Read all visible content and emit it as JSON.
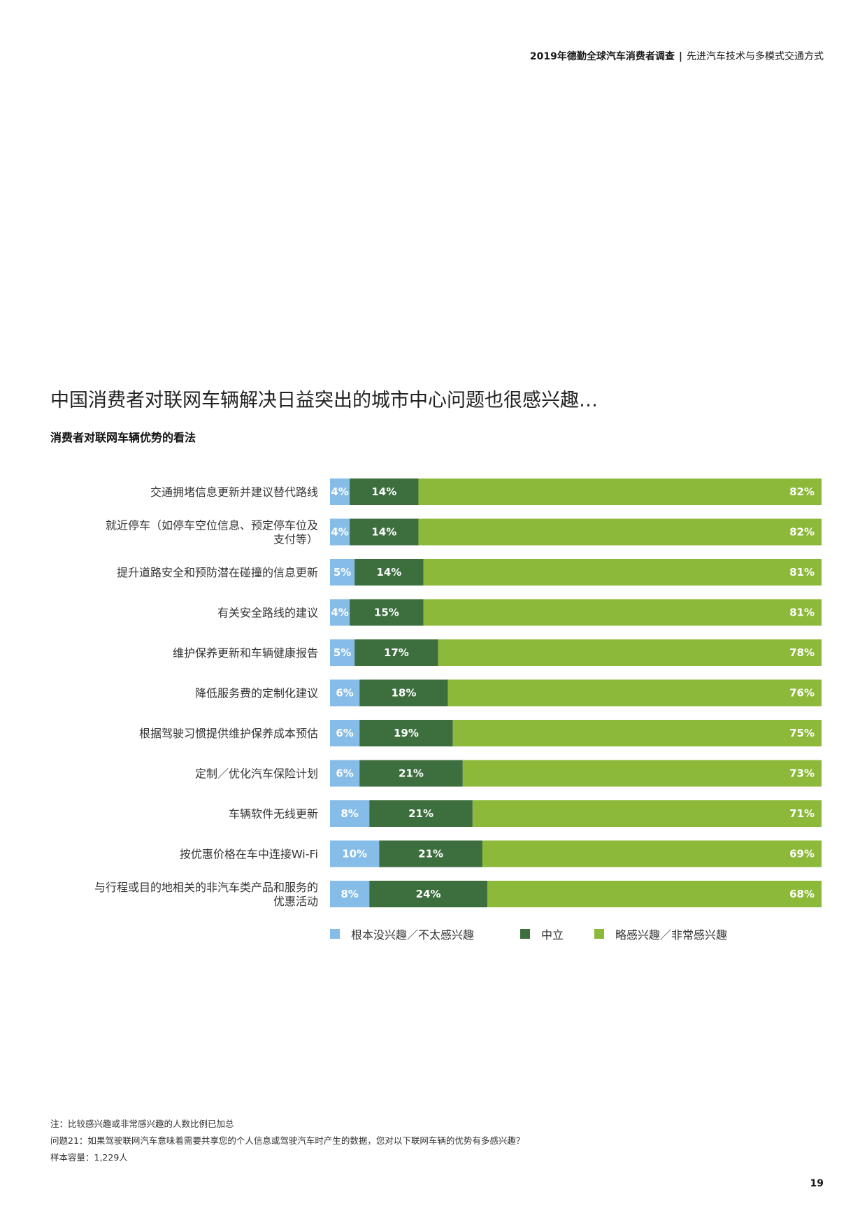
{
  "header": {
    "title": "2019年德勤全球汽车消费者调查",
    "separator": "|",
    "subtitle": "先进汽车技术与多模式交通方式"
  },
  "headline": "中国消费者对联网车辆解决日益突出的城市中心问题也很感兴趣…",
  "chart_title": "消费者对联网车辆优势的看法",
  "chart_data": {
    "type": "bar",
    "orientation": "horizontal",
    "stacked": true,
    "categories": [
      [
        "交通拥堵信息更新并建议替代路线"
      ],
      [
        "就近停车（如停车空位信息、预定停车位及",
        "支付等）"
      ],
      [
        "提升道路安全和预防潜在碰撞的信息更新"
      ],
      [
        "有关安全路线的建议"
      ],
      [
        "维护保养更新和车辆健康报告"
      ],
      [
        "降低服务费的定制化建议"
      ],
      [
        "根据驾驶习惯提供维护保养成本预估"
      ],
      [
        "定制／优化汽车保险计划"
      ],
      [
        "车辆软件无线更新"
      ],
      [
        "按优惠价格在车中连接Wi-Fi"
      ],
      [
        "与行程或目的地相关的非汽车类产品和服务的",
        "优惠活动"
      ]
    ],
    "series": [
      {
        "name": "根本没兴趣／不太感兴趣",
        "color": "#86bce8",
        "values": [
          4,
          4,
          5,
          4,
          5,
          6,
          6,
          6,
          8,
          10,
          8
        ]
      },
      {
        "name": "中立",
        "color": "#3d6e3e",
        "values": [
          14,
          14,
          14,
          15,
          17,
          18,
          19,
          21,
          21,
          21,
          24
        ]
      },
      {
        "name": "略感兴趣／非常感兴趣",
        "color": "#8db93a",
        "values": [
          82,
          82,
          81,
          81,
          78,
          76,
          75,
          73,
          71,
          69,
          68
        ]
      }
    ],
    "value_suffix": "%",
    "legend_position": "bottom"
  },
  "notes": {
    "note": "注：比较感兴趣或非常感兴趣的人数比例已加总",
    "question": "问题21：如果驾驶联网汽车意味着需要共享您的个人信息或驾驶汽车时产生的数据，您对以下联网车辆的优势有多感兴趣？",
    "sample": "样本容量：1,229人"
  },
  "page_number": "19"
}
